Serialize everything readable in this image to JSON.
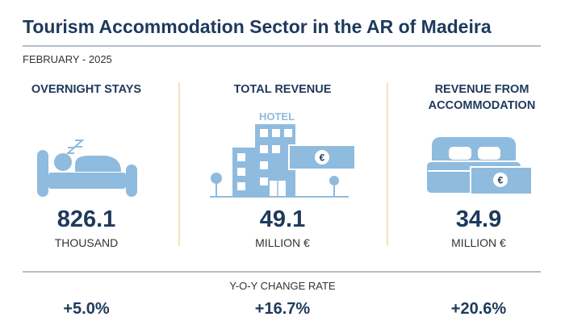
{
  "header": {
    "title": "Tourism Accommodation Sector in the AR of Madeira",
    "subtitle": "FEBRUARY - 2025"
  },
  "icons": {
    "hotel_label": "HOTEL",
    "currency": "€"
  },
  "panels": [
    {
      "heading": "OVERNIGHT STAYS",
      "value": "826.1",
      "unit": "THOUSAND"
    },
    {
      "heading": "TOTAL REVENUE",
      "value": "49.1",
      "unit": "MILLION €"
    },
    {
      "heading": "REVENUE FROM ACCOMMODATION",
      "value": "34.9",
      "unit": "MILLION €"
    }
  ],
  "change": {
    "label": "Y-O-Y CHANGE RATE",
    "values": [
      "+5.0%",
      "+16.7%",
      "+20.6%"
    ]
  }
}
